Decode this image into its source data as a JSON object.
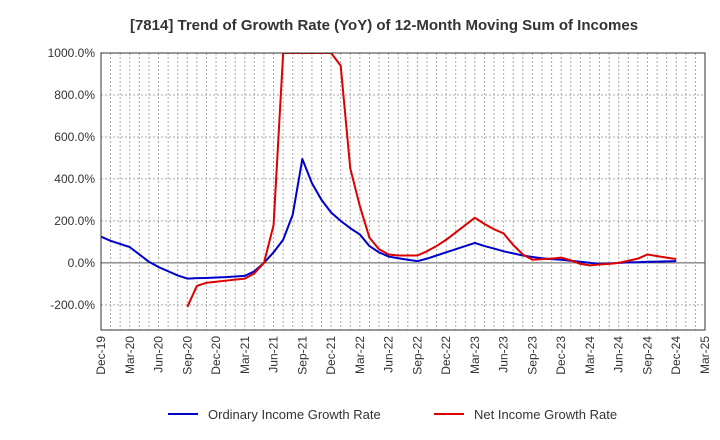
{
  "chart_data": {
    "type": "line",
    "title": "[7814]  Trend of Growth Rate (YoY) of 12-Month Moving Sum of Incomes",
    "xlabel": "",
    "ylabel": "",
    "ylim": [
      -320,
      1000
    ],
    "y_ticks": [
      -200,
      0,
      200,
      400,
      600,
      800,
      1000
    ],
    "y_tick_labels": [
      "-200.0%",
      "0.0%",
      "200.0%",
      "400.0%",
      "600.0%",
      "800.0%",
      "1000.0%"
    ],
    "x_tick_labels": [
      "Dec-19",
      "Mar-20",
      "Jun-20",
      "Sep-20",
      "Dec-20",
      "Mar-21",
      "Jun-21",
      "Sep-21",
      "Dec-21",
      "Mar-22",
      "Jun-22",
      "Sep-22",
      "Dec-22",
      "Mar-23",
      "Jun-23",
      "Sep-23",
      "Dec-23",
      "Mar-24",
      "Jun-24",
      "Sep-24",
      "Dec-24",
      "Mar-25"
    ],
    "grid": true,
    "legend_position": "bottom",
    "series": [
      {
        "name": "Ordinary Income Growth Rate",
        "color": "#0000cc",
        "x": [
          "Dec-19",
          "Jan-20",
          "Feb-20",
          "Mar-20",
          "Apr-20",
          "May-20",
          "Jun-20",
          "Jul-20",
          "Aug-20",
          "Sep-20",
          "Oct-20",
          "Nov-20",
          "Dec-20",
          "Jan-21",
          "Feb-21",
          "Mar-21",
          "Apr-21",
          "May-21",
          "Jun-21",
          "Jul-21",
          "Aug-21",
          "Sep-21",
          "Oct-21",
          "Nov-21",
          "Dec-21",
          "Jan-22",
          "Feb-22",
          "Mar-22",
          "Apr-22",
          "May-22",
          "Jun-22",
          "Jul-22",
          "Aug-22",
          "Sep-22",
          "Oct-22",
          "Nov-22",
          "Dec-22",
          "Jan-23",
          "Feb-23",
          "Mar-23",
          "Apr-23",
          "May-23",
          "Jun-23",
          "Jul-23",
          "Aug-23",
          "Sep-23",
          "Oct-23",
          "Nov-23",
          "Dec-23",
          "Jan-24",
          "Feb-24",
          "Mar-24",
          "Apr-24",
          "May-24",
          "Jun-24",
          "Jul-24",
          "Aug-24",
          "Sep-24",
          "Oct-24",
          "Nov-24",
          "Dec-24"
        ],
        "values": [
          125,
          105,
          90,
          75,
          40,
          5,
          -20,
          -40,
          -60,
          -75,
          -73,
          -72,
          -70,
          -68,
          -65,
          -62,
          -40,
          0,
          50,
          110,
          230,
          495,
          380,
          300,
          240,
          200,
          165,
          135,
          80,
          50,
          30,
          22,
          15,
          8,
          20,
          35,
          50,
          65,
          80,
          95,
          80,
          68,
          55,
          45,
          35,
          28,
          22,
          18,
          15,
          10,
          5,
          0,
          -5,
          -3,
          0,
          2,
          3,
          5,
          6,
          7,
          8
        ]
      },
      {
        "name": "Net Income Growth Rate",
        "color": "#dd0000",
        "x": [
          "Sep-20",
          "Oct-20",
          "Nov-20",
          "Dec-20",
          "Jan-21",
          "Feb-21",
          "Mar-21",
          "Apr-21",
          "May-21",
          "Jun-21",
          "Jul-21",
          "Aug-21",
          "Sep-21",
          "Oct-21",
          "Nov-21",
          "Dec-21",
          "Jan-22",
          "Feb-22",
          "Mar-22",
          "Apr-22",
          "May-22",
          "Jun-22",
          "Jul-22",
          "Aug-22",
          "Sep-22",
          "Oct-22",
          "Nov-22",
          "Dec-22",
          "Jan-23",
          "Feb-23",
          "Mar-23",
          "Apr-23",
          "May-23",
          "Jun-23",
          "Jul-23",
          "Aug-23",
          "Sep-23",
          "Oct-23",
          "Nov-23",
          "Dec-23",
          "Jan-24",
          "Feb-24",
          "Mar-24",
          "Apr-24",
          "May-24",
          "Jun-24",
          "Jul-24",
          "Aug-24",
          "Sep-24",
          "Oct-24",
          "Nov-24",
          "Dec-24"
        ],
        "values": [
          -210,
          -110,
          -95,
          -90,
          -85,
          -80,
          -75,
          -50,
          0,
          180,
          1000,
          1000,
          1000,
          1000,
          1000,
          1000,
          940,
          450,
          270,
          120,
          65,
          40,
          35,
          35,
          35,
          55,
          80,
          110,
          145,
          180,
          215,
          185,
          160,
          140,
          85,
          40,
          15,
          18,
          20,
          25,
          12,
          -5,
          -12,
          -8,
          -5,
          0,
          10,
          20,
          40,
          32,
          25,
          18
        ]
      }
    ]
  }
}
